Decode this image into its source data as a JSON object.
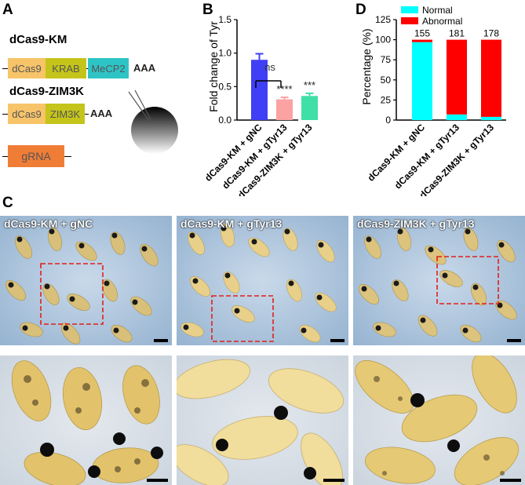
{
  "panels": {
    "A": {
      "letter": "A",
      "km": {
        "title": "dCas9-KM",
        "parts": [
          "dCas9",
          "KRAB",
          "MeCP2"
        ],
        "tail": "AAA"
      },
      "zim": {
        "title": "dCas9-ZIM3K",
        "parts": [
          "dCas9",
          "ZIM3K"
        ],
        "tail": "AAA"
      },
      "grna": "gRNA"
    },
    "B": {
      "letter": "B",
      "ns_label": "ns"
    },
    "C": {
      "letter": "C",
      "photo_labels": [
        "dCas9-KM + gNC",
        "dCas9-KM + gTyr13",
        "dCas9-ZIM3K + gTyr13"
      ]
    },
    "D": {
      "letter": "D"
    }
  },
  "colors": {
    "dcas9": "#f7c46a",
    "krab": "#c4c41a",
    "mecp2": "#2ec4c6",
    "zim3k": "#c4c41a",
    "grna": "#f07d36",
    "bar_gnc": "#3f3ff5",
    "bar_km": "#fba3a3",
    "bar_zim": "#3ee0a8",
    "normal": "#00ffff",
    "abnormal": "#ff0000"
  },
  "chart_data": [
    {
      "type": "bar",
      "ylabel": "Fold change of Tyr",
      "categories": [
        "dCas9-KM + gNC",
        "dCas9-KM + gTyr13",
        "dCas9-ZIM3K + gTyr13"
      ],
      "values": [
        0.9,
        0.31,
        0.36
      ],
      "errors": [
        0.09,
        0.03,
        0.04
      ],
      "significance": [
        "",
        "****",
        "***"
      ],
      "comparison": {
        "between": [
          1,
          2
        ],
        "label": "ns"
      },
      "ylim": [
        0,
        1.5
      ],
      "yticks": [
        "0.0",
        "0.5",
        "1.0",
        "1.5"
      ],
      "grid": false
    },
    {
      "type": "bar",
      "stacked": true,
      "ylabel": "Percentage (%)",
      "categories": [
        "dCas9-KM + gNC",
        "dCas9-KM + gTyr13",
        "dCas9-ZIM3K + gTyr13"
      ],
      "series": [
        {
          "name": "Normal",
          "values": [
            97,
            7,
            4
          ]
        },
        {
          "name": "Abnormal",
          "values": [
            3,
            93,
            96
          ]
        }
      ],
      "n_labels": [
        "155",
        "181",
        "178"
      ],
      "ylim": [
        0,
        125
      ],
      "yticks": [
        "0",
        "25",
        "50",
        "75",
        "100",
        "125"
      ],
      "legend": "top-left",
      "grid": false
    }
  ]
}
